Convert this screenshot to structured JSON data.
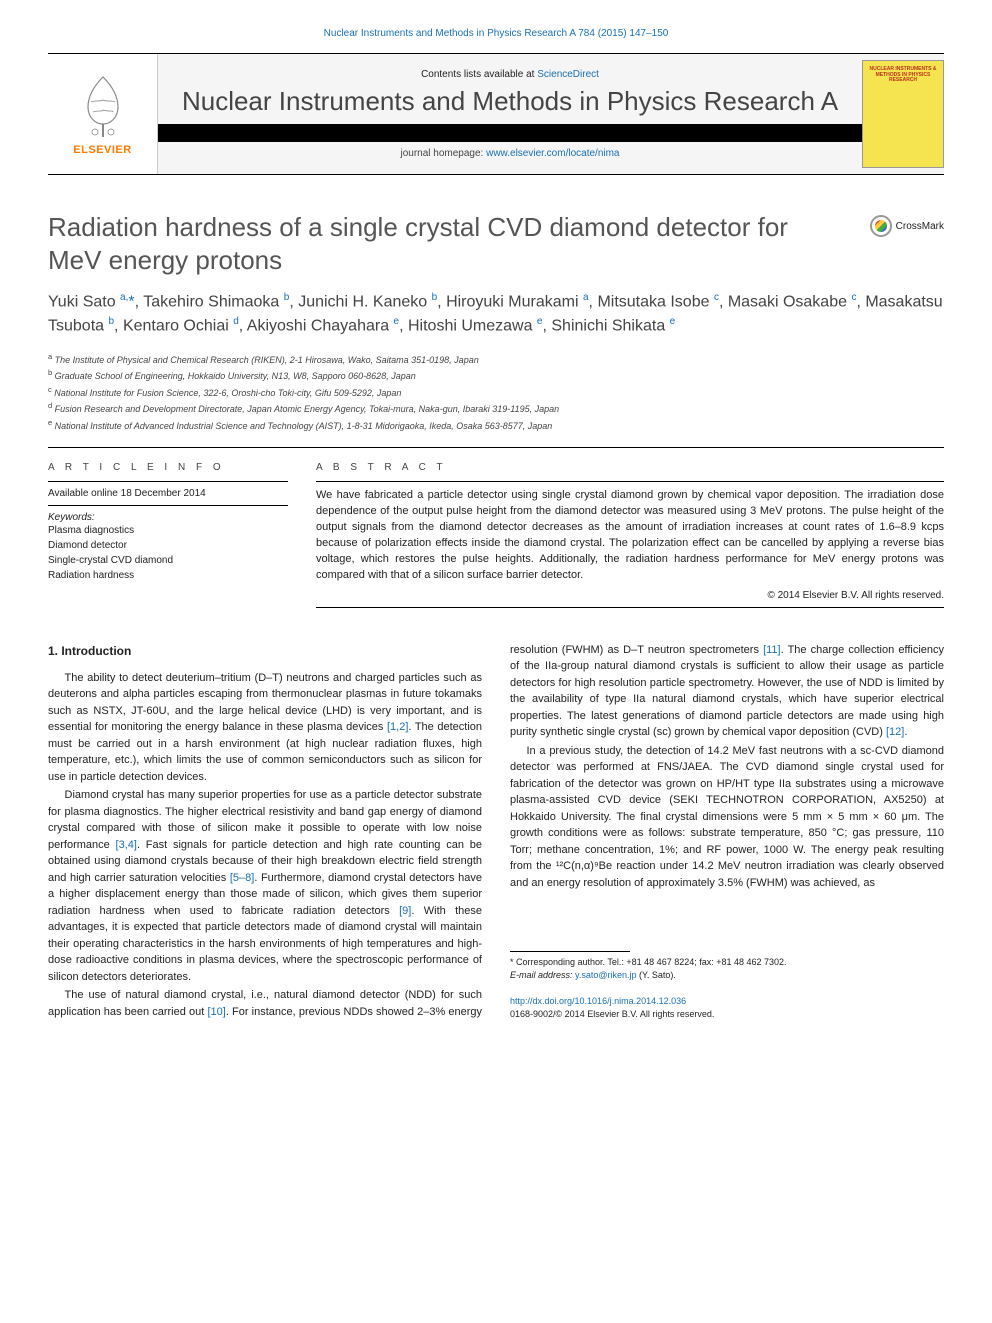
{
  "top_link": "Nuclear Instruments and Methods in Physics Research A 784 (2015) 147–150",
  "banner": {
    "contents_prefix": "Contents lists available at ",
    "contents_link": "ScienceDirect",
    "journal_name": "Nuclear Instruments and Methods in Physics Research A",
    "homepage_prefix": "journal homepage: ",
    "homepage_link": "www.elsevier.com/locate/nima",
    "elsevier_label": "ELSEVIER",
    "cover_text": "NUCLEAR INSTRUMENTS & METHODS IN PHYSICS RESEARCH"
  },
  "crossmark_label": "CrossMark",
  "title": "Radiation hardness of a single crystal CVD diamond detector for MeV energy protons",
  "authors_html": "Yuki Sato <sup>a,</sup><span class='star'>*</span>, Takehiro Shimaoka <sup>b</sup>, Junichi H. Kaneko <sup>b</sup>, Hiroyuki Murakami <sup>a</sup>, Mitsutaka Isobe <sup>c</sup>, Masaki Osakabe <sup>c</sup>, Masakatsu Tsubota <sup>b</sup>, Kentaro Ochiai <sup>d</sup>, Akiyoshi Chayahara <sup>e</sup>, Hitoshi Umezawa <sup>e</sup>, Shinichi Shikata <sup>e</sup>",
  "affiliations": [
    "a The Institute of Physical and Chemical Research (RIKEN), 2-1 Hirosawa, Wako, Saitama 351-0198, Japan",
    "b Graduate School of Engineering, Hokkaido University, N13, W8, Sapporo 060-8628, Japan",
    "c National Institute for Fusion Science, 322-6, Oroshi-cho Toki-city, Gifu 509-5292, Japan",
    "d Fusion Research and Development Directorate, Japan Atomic Energy Agency, Tokai-mura, Naka-gun, Ibaraki 319-1195, Japan",
    "e National Institute of Advanced Industrial Science and Technology (AIST), 1-8-31 Midorigaoka, Ikeda, Osaka 563-8577, Japan"
  ],
  "article_info_label": "A R T I C L E  I N F O",
  "abstract_label": "A B S T R A C T",
  "available_line": "Available online 18 December 2014",
  "keywords_label": "Keywords:",
  "keywords": [
    "Plasma diagnostics",
    "Diamond detector",
    "Single-crystal CVD diamond",
    "Radiation hardness"
  ],
  "abstract_text": "We have fabricated a particle detector using single crystal diamond grown by chemical vapor deposition. The irradiation dose dependence of the output pulse height from the diamond detector was measured using 3 MeV protons. The pulse height of the output signals from the diamond detector decreases as the amount of irradiation increases at count rates of 1.6–8.9 kcps because of polarization effects inside the diamond crystal. The polarization effect can be cancelled by applying a reverse bias voltage, which restores the pulse heights. Additionally, the radiation hardness performance for MeV energy protons was compared with that of a silicon surface barrier detector.",
  "abstract_copyright": "© 2014 Elsevier B.V. All rights reserved.",
  "intro_heading": "1.  Introduction",
  "paragraphs": {
    "p1a": "The ability to detect deuterium–tritium (D–T) neutrons and charged particles such as deuterons and alpha particles escaping from thermonuclear plasmas in future tokamaks such as NSTX, JT-60U, and the large helical device (LHD) is very important, and is essential for monitoring the energy balance in these plasma devices ",
    "p1_ref1": "[1,2]",
    "p1b": ". The detection must be carried out in a harsh environment (at high nuclear radiation fluxes, high temperature, etc.), which limits the use of common semiconductors such as silicon for use in particle detection devices.",
    "p2a": "Diamond crystal has many superior properties for use as a particle detector substrate for plasma diagnostics. The higher electrical resistivity and band gap energy of diamond crystal compared with those of silicon make it possible to operate with low noise performance ",
    "p2_ref1": "[3,4]",
    "p2b": ". Fast signals for particle detection and high rate counting can be obtained using diamond crystals because of their high breakdown electric field strength and high carrier saturation velocities ",
    "p2_ref2": "[5–8]",
    "p2c": ". Furthermore, diamond crystal detectors have a higher displacement energy than those made of silicon, which gives them superior radiation hardness when used to fabricate radiation detectors ",
    "p2_ref3": "[9]",
    "p2d": ". With these advantages, it is expected that particle detectors made of diamond crystal will maintain their operating characteristics in the harsh environments of high temperatures and high-dose radioactive conditions in plasma devices, where the spectroscopic performance of silicon detectors deteriorates.",
    "p3a": "The use of natural diamond crystal, i.e., natural diamond detector (NDD) for such application has been carried out ",
    "p3_ref1": "[10]",
    "p3b": ". For instance, previous NDDs showed 2–3% energy resolution (FWHM) as D–T neutron spectrometers ",
    "p3_ref2": "[11]",
    "p3c": ". The charge collection efficiency of the IIa-group natural diamond crystals is sufficient to allow their usage as particle detectors for high resolution particle spectrometry. However, the use of NDD is limited by the availability of type IIa natural diamond crystals, which have superior electrical properties. The latest generations of diamond particle detectors are made using high purity synthetic single crystal (sc) grown by chemical vapor deposition (CVD) ",
    "p3_ref3": "[12]",
    "p3d": ".",
    "p4a": "In a previous study, the detection of 14.2 MeV fast neutrons with a sc-CVD diamond detector was performed at FNS/JAEA. The CVD diamond single crystal used for fabrication of the detector was grown on HP/HT type IIa substrates using a microwave plasma-assisted CVD device (SEKI TECHNOTRON CORPORATION, AX5250) at Hokkaido University. The final crystal dimensions were 5 mm × 5 mm × 60 μm. The growth conditions were as follows: substrate temperature, 850 °C; gas pressure, 110 Torr; methane concentration, 1%; and RF power, 1000 W. The energy peak resulting from the ",
    "p4_reaction": "¹²C(n,α)⁹Be",
    "p4b": " reaction under 14.2 MeV neutron irradiation was clearly observed and an energy resolution of approximately 3.5% (FWHM) was achieved, as"
  },
  "footnote": {
    "corr": "* Corresponding author. Tel.: +81 48 467 8224; fax: +81 48 462 7302.",
    "email_label": "E-mail address: ",
    "email": "y.sato@riken.jp",
    "email_suffix": " (Y. Sato)."
  },
  "doi": {
    "link": "http://dx.doi.org/10.1016/j.nima.2014.12.036",
    "issn_line": "0168-9002/© 2014 Elsevier B.V. All rights reserved."
  },
  "colors": {
    "link": "#1a6fb3",
    "elsevier_orange": "#ff7a00",
    "cover_yellow": "#f5e450",
    "cover_red": "#c03020"
  }
}
